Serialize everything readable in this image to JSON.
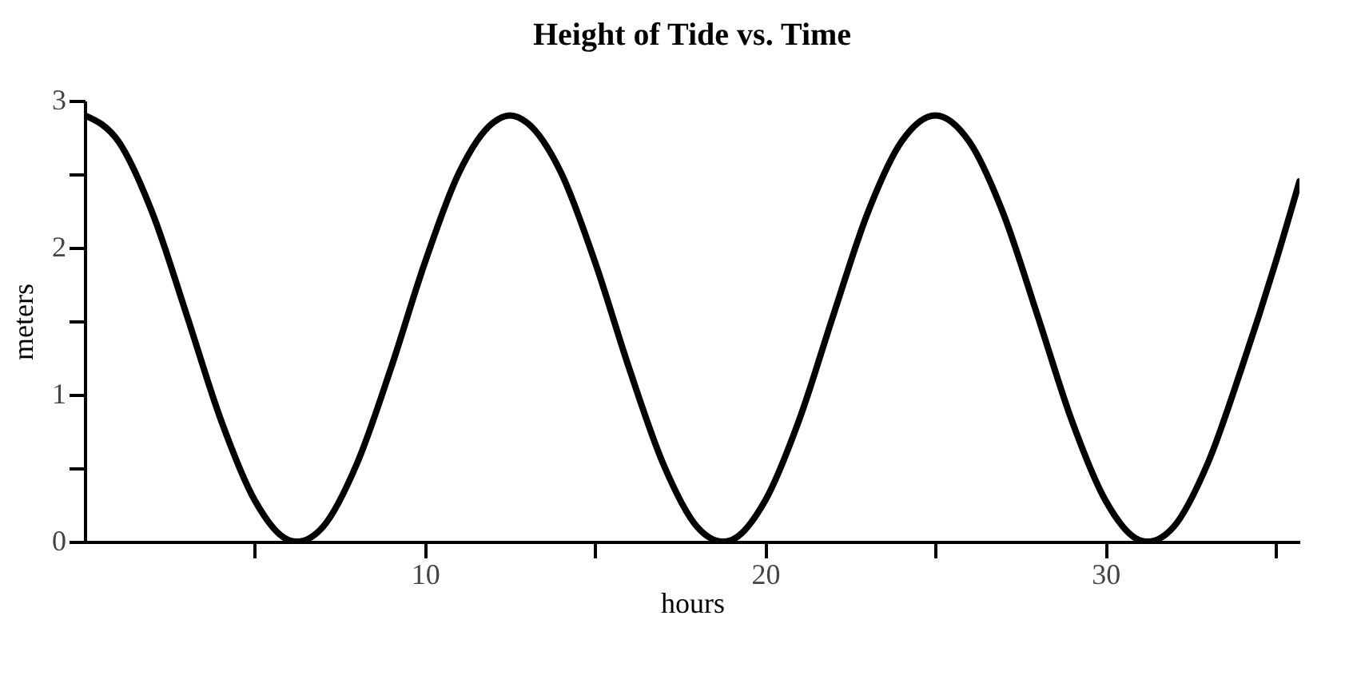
{
  "chart_data": {
    "type": "line",
    "title": "Height of Tide vs. Time",
    "xlabel": "hours",
    "ylabel": "meters",
    "x": [
      0,
      1,
      2,
      3,
      4,
      5,
      6,
      6.25,
      7,
      8,
      9,
      10,
      11,
      12,
      12.5,
      13,
      14,
      15,
      16,
      17,
      18,
      18.75,
      19,
      20,
      21,
      22,
      23,
      24,
      25,
      26,
      27,
      28,
      29,
      30,
      31,
      31.25,
      32,
      33,
      34,
      35,
      35.7
    ],
    "series": [
      {
        "color": "#000000",
        "values": [
          2.9,
          2.72,
          2.23,
          1.54,
          0.83,
          0.28,
          0.01,
          0,
          0.1,
          0.53,
          1.18,
          1.9,
          2.51,
          2.85,
          2.9,
          2.85,
          2.51,
          1.9,
          1.18,
          0.53,
          0.1,
          0,
          0.01,
          0.28,
          0.83,
          1.54,
          2.23,
          2.72,
          2.9,
          2.72,
          2.23,
          1.54,
          0.83,
          0.28,
          0.01,
          0,
          0.1,
          0.53,
          1.18,
          1.9,
          2.45
        ]
      }
    ],
    "xlim": [
      0,
      35.7
    ],
    "xticks": [
      {
        "value": 5,
        "label": null
      },
      10,
      {
        "value": 15,
        "label": null
      },
      20,
      {
        "value": 25,
        "label": null
      },
      30,
      {
        "value": 35,
        "label": null
      }
    ],
    "ylim": [
      0,
      3
    ],
    "yticks": [
      0,
      {
        "value": 0.5,
        "label": null
      },
      1,
      {
        "value": 1.5,
        "label": null
      },
      2,
      {
        "value": 2.5,
        "label": null
      },
      3
    ],
    "grid": false,
    "legend": false,
    "marker": "none",
    "line_style": "solid"
  }
}
